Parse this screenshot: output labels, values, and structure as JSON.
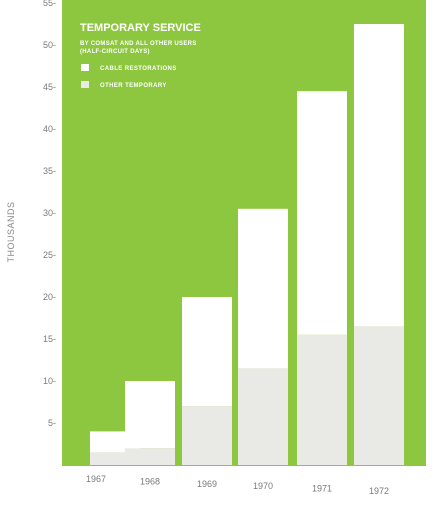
{
  "chart_data": {
    "type": "bar",
    "stacked": true,
    "title": "TEMPORARY SERVICE",
    "subtitle_lines": [
      "BY COMSAT AND ALL OTHER USERS",
      "(HALF-CIRCUIT DAYS)"
    ],
    "ylabel": "THOUSANDS",
    "xlabel": "",
    "ylim": [
      0,
      55
    ],
    "yticks": [
      5,
      10,
      15,
      20,
      25,
      30,
      35,
      40,
      45,
      50,
      55
    ],
    "ytick_labels": [
      "5-",
      "10-",
      "15-",
      "20-",
      "25-",
      "30-",
      "35-",
      "40-",
      "45-",
      "50-",
      "55-"
    ],
    "categories": [
      "1967",
      "1968",
      "1969",
      "1970",
      "1971",
      "1972"
    ],
    "series": [
      {
        "name": "OTHER TEMPORARY",
        "color": "#e9e9e6",
        "values": [
          1.5,
          2.0,
          7.0,
          11.5,
          15.5,
          16.5
        ]
      },
      {
        "name": "CABLE RESTORATIONS",
        "color": "#ffffff",
        "values": [
          2.5,
          8.0,
          13.0,
          19.0,
          29.0,
          36.0
        ]
      }
    ],
    "legend": [
      {
        "label": "CABLE RESTORATIONS",
        "color": "#ffffff"
      },
      {
        "label": "OTHER TEMPORARY",
        "color": "#e9e9e6"
      }
    ],
    "legend_position": "top-left",
    "background_color": "#8dc63f",
    "grid": false
  }
}
